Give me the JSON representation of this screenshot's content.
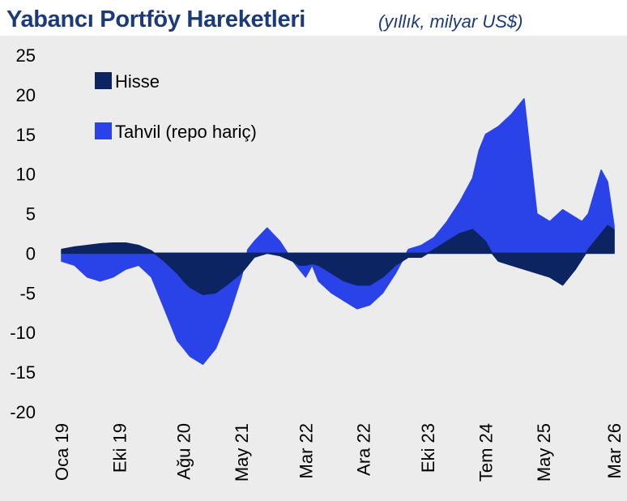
{
  "header": {
    "title": "Yabancı Portföy Hareketleri",
    "subtitle": "(yıllık, milyar US$)"
  },
  "colors": {
    "hisse": "#0c2461",
    "tahvil": "#2a43e8",
    "background": "#ececec",
    "title": "#1b3a7a"
  },
  "chart_data": {
    "type": "area",
    "title": "Yabancı Portföy Hareketleri",
    "subtitle": "(yıllık, milyar US$)",
    "ylim": [
      -20,
      25
    ],
    "yticks": [
      25,
      20,
      15,
      10,
      5,
      0,
      -5,
      -10,
      -15,
      -20
    ],
    "ytick_labels": [
      "25",
      "20",
      "15",
      "10",
      "5",
      "0",
      "-5",
      "-10",
      "-15",
      "-20"
    ],
    "xlim": [
      0,
      86
    ],
    "xtick_positions": [
      0,
      9,
      19,
      28,
      38,
      47,
      57,
      66,
      75,
      86
    ],
    "xtick_labels": [
      "Oca 19",
      "Eki 19",
      "Ağu 20",
      "May 21",
      "Mar 22",
      "Ara 22",
      "Eki 23",
      "Tem 24",
      "May 25",
      "Mar 26"
    ],
    "legend": {
      "placement": "top-left"
    },
    "grid": false,
    "series": [
      {
        "name": "Hisse",
        "x": [
          0,
          2,
          4,
          6,
          8,
          10,
          12,
          14,
          16,
          18,
          19,
          20,
          22,
          24,
          26,
          28,
          29,
          30,
          32,
          34,
          36,
          37,
          38,
          39,
          40,
          42,
          44,
          46,
          48,
          50,
          52,
          54,
          56,
          58,
          60,
          62,
          64,
          66,
          67,
          68,
          70,
          72,
          74,
          76,
          78,
          80,
          82,
          84,
          85,
          86
        ],
        "y": [
          0.5,
          0.8,
          1.0,
          1.2,
          1.3,
          1.3,
          1.0,
          0.3,
          -1.0,
          -2.5,
          -3.5,
          -4.3,
          -5.2,
          -5.0,
          -3.8,
          -2.5,
          -1.5,
          -0.5,
          0.0,
          -0.3,
          -1.0,
          -1.5,
          -1.5,
          -1.3,
          -1.5,
          -2.5,
          -3.5,
          -4.0,
          -4.0,
          -3.0,
          -1.5,
          -0.5,
          -0.5,
          0.5,
          1.5,
          2.5,
          3.0,
          1.5,
          0.0,
          -1.0,
          -1.5,
          -2.0,
          -2.5,
          -3.0,
          -4.0,
          -2.0,
          0.5,
          2.5,
          3.5,
          3.0
        ]
      },
      {
        "name": "Tahvil (repo hariç)",
        "x": [
          0,
          2,
          4,
          6,
          8,
          10,
          12,
          14,
          16,
          18,
          19,
          20,
          22,
          24,
          26,
          28,
          29,
          30,
          32,
          34,
          36,
          37,
          38,
          39,
          40,
          42,
          44,
          46,
          48,
          50,
          52,
          54,
          56,
          58,
          60,
          62,
          64,
          65,
          66,
          68,
          70,
          72,
          74,
          76,
          78,
          80,
          81,
          82,
          84,
          85,
          86
        ],
        "y": [
          -1.0,
          -1.5,
          -3.0,
          -3.5,
          -3.0,
          -2.0,
          -1.5,
          -3.0,
          -7.0,
          -11.0,
          -12.0,
          -13.0,
          -14.0,
          -12.0,
          -8.0,
          -3.0,
          0.5,
          1.5,
          3.2,
          1.5,
          -1.0,
          -2.0,
          -3.0,
          -1.5,
          -3.5,
          -5.0,
          -6.0,
          -7.0,
          -6.5,
          -5.0,
          -2.5,
          0.5,
          1.0,
          2.0,
          4.0,
          6.5,
          9.5,
          13.0,
          15.0,
          16.0,
          17.5,
          19.5,
          5.0,
          4.0,
          5.5,
          4.5,
          4.0,
          5.0,
          10.5,
          9.0,
          3.5
        ]
      }
    ]
  },
  "legend": {
    "hisse": "Hisse",
    "tahvil": "Tahvil (repo hariç)"
  }
}
